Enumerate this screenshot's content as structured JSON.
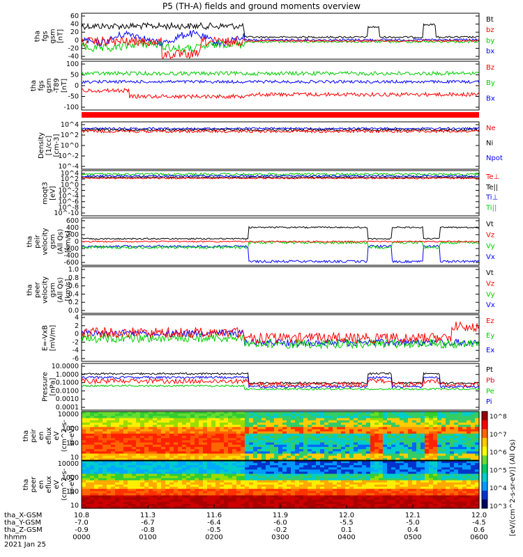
{
  "title": "P5 (TH-A) fields and ground moments overview",
  "time_rows": {
    "labels": [
      "tha_X-GSM",
      "tha_Y-GSM",
      "tha_Z-GSM",
      "hhmm",
      "2021 Jan 25"
    ],
    "columns": [
      [
        "10.8",
        "-7.0",
        "-0.9",
        "0000"
      ],
      [
        "11.3",
        "-6.7",
        "-0.8",
        "0100"
      ],
      [
        "11.6",
        "-6.4",
        "-0.5",
        "0200"
      ],
      [
        "11.9",
        "-6.0",
        "-0.2",
        "0300"
      ],
      [
        "12.0",
        "-5.5",
        "0.1",
        "0400"
      ],
      [
        "12.1",
        "-5.0",
        "0.4",
        "0500"
      ],
      [
        "12.0",
        "-4.5",
        "0.6",
        "0600"
      ]
    ]
  },
  "colorbar": {
    "ticks": [
      "10^8",
      "10^7",
      "10^6",
      "10^5",
      "10^4",
      "10^3"
    ],
    "label": "[eV/(cm^2-s-sr-eV)]  (All Qs)"
  },
  "chart_data": [
    {
      "type": "line",
      "id": "fgs",
      "ylabel": [
        "tha",
        "fgs",
        "gsm",
        "[nT]"
      ],
      "ylim": [
        -40,
        60
      ],
      "yticks": [
        "60",
        "40",
        "20",
        "0",
        "-20",
        "-40"
      ],
      "legend": [
        {
          "name": "Bt",
          "color": "#000000"
        },
        {
          "name": "bz",
          "color": "#ff0000"
        },
        {
          "name": "by",
          "color": "#00cc00"
        },
        {
          "name": "bx",
          "color": "#0000ff"
        }
      ]
    },
    {
      "type": "line",
      "id": "fgs_model",
      "ylabel": [
        "tha",
        "fgs",
        "gsm",
        "-T89",
        "[nT]"
      ],
      "ylim": [
        -140,
        100
      ],
      "yticks": [
        "100",
        "50",
        "0",
        "-50",
        "-100"
      ],
      "legend": [
        {
          "name": "Bz",
          "color": "#ff0000"
        },
        {
          "name": "By",
          "color": "#00cc00"
        },
        {
          "name": "Bx",
          "color": "#0000ff"
        }
      ]
    },
    {
      "type": "line",
      "id": "density",
      "ylabel": [
        "Density",
        "[1/cc]",
        "[cm-3]"
      ],
      "yticks": [
        "10^4",
        "10^2",
        "10^0",
        "10^-2",
        "10^-4"
      ],
      "legend": [
        {
          "name": "Ne",
          "color": "#ff0000"
        },
        {
          "name": "Ni",
          "color": "#000000"
        },
        {
          "name": "Npot",
          "color": "#0000ff"
        }
      ]
    },
    {
      "type": "line",
      "id": "temperature",
      "ylabel": [
        "moqt3",
        "[eV]"
      ],
      "yticks": [
        "10^4",
        "10^2",
        "10^0",
        "10^-2",
        "10^-4",
        "10^-6",
        "10^-8",
        "10^-10"
      ],
      "legend": [
        {
          "name": "Te⊥",
          "color": "#ff0000"
        },
        {
          "name": "Te||",
          "color": "#000000"
        },
        {
          "name": "Ti⊥",
          "color": "#0000ff"
        },
        {
          "name": "Ti||",
          "color": "#00cc00"
        }
      ]
    },
    {
      "type": "line",
      "id": "ion_velocity",
      "ylabel": [
        "tha",
        "peir",
        "velocity",
        "gsm",
        "(All Qs)",
        "[km/s]"
      ],
      "ylim": [
        -600,
        600
      ],
      "yticks": [
        "600",
        "400",
        "200",
        "0",
        "-200",
        "-400",
        "-600"
      ],
      "legend": [
        {
          "name": "Vt",
          "color": "#000000"
        },
        {
          "name": "Vz",
          "color": "#ff0000"
        },
        {
          "name": "Vy",
          "color": "#00cc00"
        },
        {
          "name": "Vx",
          "color": "#0000ff"
        }
      ]
    },
    {
      "type": "line",
      "id": "electron_velocity",
      "ylabel": [
        "tha",
        "peer",
        "velocity",
        "gsm",
        "(All Qs)",
        "[km/s]"
      ],
      "ylim": [
        0,
        1
      ],
      "yticks": [
        "1.0",
        "0.8",
        "0.6",
        "0.4",
        "0.2",
        "0.0"
      ],
      "legend": [
        {
          "name": "Vt",
          "color": "#000000"
        },
        {
          "name": "Vz",
          "color": "#ff0000"
        },
        {
          "name": "Vy",
          "color": "#00cc00"
        },
        {
          "name": "Vx",
          "color": "#0000ff"
        }
      ]
    },
    {
      "type": "line",
      "id": "efield",
      "ylabel": [
        "E=-VxB",
        "[mV/m]"
      ],
      "ylim": [
        -6,
        4
      ],
      "yticks": [
        "4",
        "2",
        "0",
        "-2",
        "-4",
        "-6"
      ],
      "legend": [
        {
          "name": "Ez",
          "color": "#ff0000"
        },
        {
          "name": "Ey",
          "color": "#00cc00"
        },
        {
          "name": "Ex",
          "color": "#0000ff"
        }
      ]
    },
    {
      "type": "line",
      "id": "pressure",
      "ylabel": [
        "Pressure",
        "[nPa]"
      ],
      "yticks": [
        "10.0000",
        "1.0000",
        "0.1000",
        "0.0100",
        "0.0010",
        "0.0001"
      ],
      "legend": [
        {
          "name": "Pt",
          "color": "#000000"
        },
        {
          "name": "Pb",
          "color": "#ff0000"
        },
        {
          "name": "Pe",
          "color": "#00cc00"
        },
        {
          "name": "Pi",
          "color": "#0000ff"
        }
      ]
    },
    {
      "type": "heatmap",
      "id": "ion_eflux",
      "ylabel": [
        "tha",
        "peir",
        "en",
        "eflux",
        "eV",
        "(cm^2-s-",
        "sr-eV)"
      ],
      "yticks": [
        "10000",
        "1000",
        "100",
        "10"
      ]
    },
    {
      "type": "heatmap",
      "id": "electron_eflux",
      "ylabel": [
        "tha",
        "peer",
        "en",
        "eflux",
        "eV",
        "(cm^2-s-",
        "sr-eV)"
      ],
      "yticks": [
        "10000",
        "1000",
        "100",
        "10"
      ]
    }
  ]
}
